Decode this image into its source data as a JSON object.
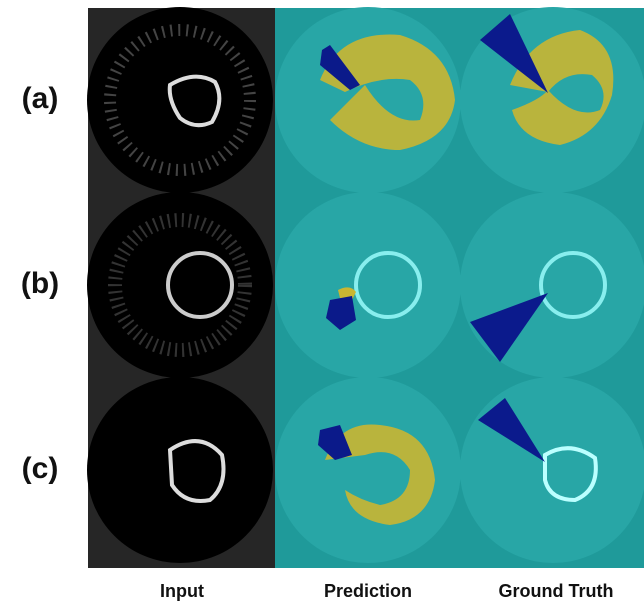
{
  "rows": [
    {
      "label": "(a)"
    },
    {
      "label": "(b)"
    },
    {
      "label": "(c)"
    }
  ],
  "columns": [
    "Input",
    "Prediction",
    "Ground Truth"
  ]
}
